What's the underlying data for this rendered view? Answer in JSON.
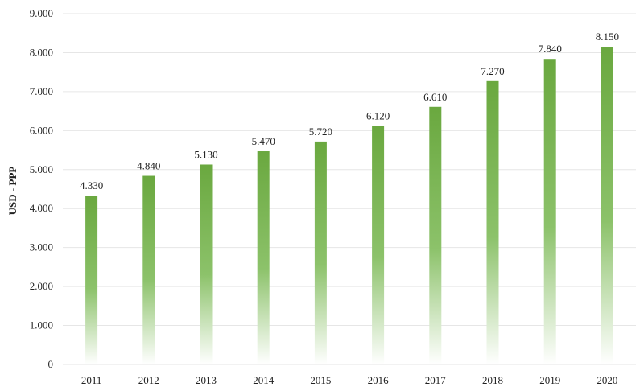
{
  "chart_data": {
    "type": "bar",
    "title": "",
    "xlabel": "",
    "ylabel": "USD - PPP",
    "categories": [
      "2011",
      "2012",
      "2013",
      "2014",
      "2015",
      "2016",
      "2017",
      "2018",
      "2019",
      "2020"
    ],
    "values": [
      4330,
      4840,
      5130,
      5470,
      5720,
      6120,
      6610,
      7270,
      7840,
      8150
    ],
    "data_labels": [
      "4.330",
      "4.840",
      "5.130",
      "5.470",
      "5.720",
      "6.120",
      "6.610",
      "7.270",
      "7.840",
      "8.150"
    ],
    "ylim": [
      0,
      9000
    ],
    "yticks": [
      0,
      1000,
      2000,
      3000,
      4000,
      5000,
      6000,
      7000,
      8000,
      9000
    ],
    "ytick_labels": [
      "0",
      "1.000",
      "2.000",
      "3.000",
      "4.000",
      "5.000",
      "6.000",
      "7.000",
      "8.000",
      "9.000"
    ],
    "grid": true,
    "legend": "none",
    "bar_color_top": "#6aa83f",
    "bar_color_bottom": "#ffffff"
  }
}
